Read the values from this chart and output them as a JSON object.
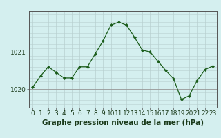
{
  "x": [
    0,
    1,
    2,
    3,
    4,
    5,
    6,
    7,
    8,
    9,
    10,
    11,
    12,
    13,
    14,
    15,
    16,
    17,
    18,
    19,
    20,
    21,
    22,
    23
  ],
  "y": [
    1020.05,
    1020.35,
    1020.6,
    1020.45,
    1020.3,
    1020.3,
    1020.6,
    1020.6,
    1020.95,
    1021.3,
    1021.72,
    1021.8,
    1021.72,
    1021.4,
    1021.05,
    1021.0,
    1020.75,
    1020.5,
    1020.28,
    1019.72,
    1019.82,
    1020.22,
    1020.52,
    1020.62
  ],
  "line_color": "#1a5c1a",
  "marker_color": "#1a5c1a",
  "bg_color": "#d4efef",
  "grid_color_v": "#b8d0d0",
  "grid_color_h": "#b8d0d0",
  "title": "Graphe pression niveau de la mer (hPa)",
  "ylim": [
    1019.5,
    1022.1
  ],
  "ytick_positions": [
    1020,
    1021
  ],
  "ytick_labels": [
    "1020",
    "1021"
  ],
  "xticks": [
    0,
    1,
    2,
    3,
    4,
    5,
    6,
    7,
    8,
    9,
    10,
    11,
    12,
    13,
    14,
    15,
    16,
    17,
    18,
    19,
    20,
    21,
    22,
    23
  ],
  "title_fontsize": 7.5,
  "tick_fontsize": 6.5,
  "fig_width": 3.2,
  "fig_height": 2.0,
  "dpi": 100
}
